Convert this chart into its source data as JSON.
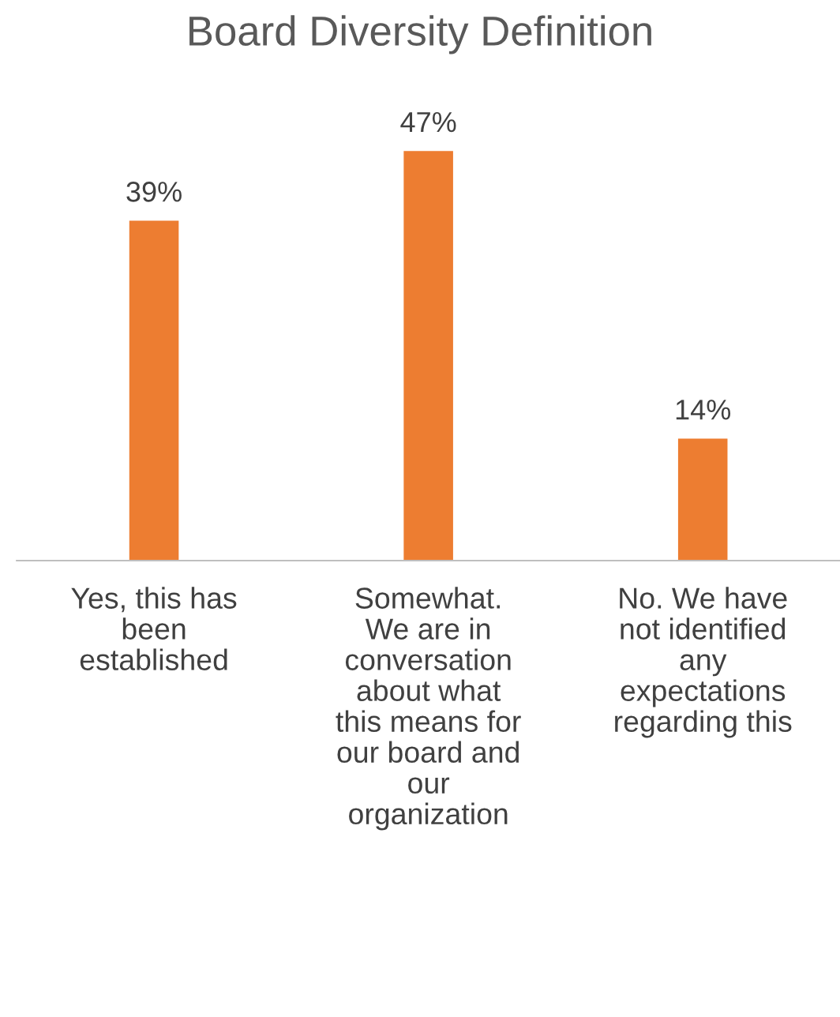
{
  "chart_data": {
    "type": "bar",
    "title": "Board Diversity Definition",
    "categories": [
      "Yes, this has\nbeen\nestablished",
      "Somewhat.\nWe are in\nconversation\nabout what\nthis means for\nour board and\nour\norganization",
      "No. We have\nnot identified\nany\nexpectations\nregarding this"
    ],
    "values": [
      39,
      47,
      14
    ],
    "color": "#ed7d31",
    "data_labels": true,
    "value_labels": [
      "39%",
      "47%",
      "14%"
    ],
    "grid": false,
    "legend": false
  }
}
